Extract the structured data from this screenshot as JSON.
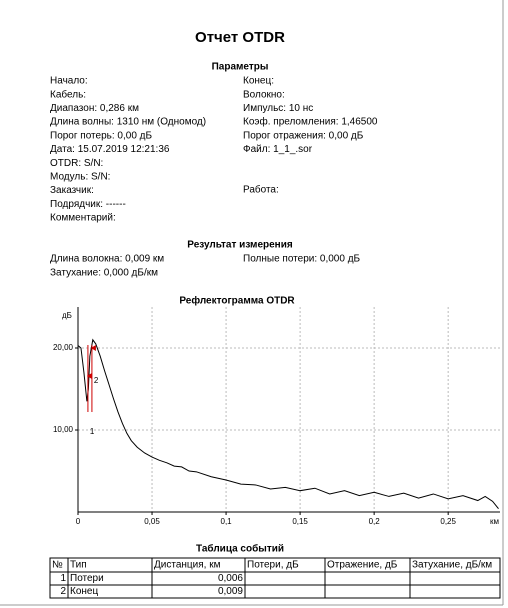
{
  "header": {
    "title": "Отчет OTDR"
  },
  "parameters": {
    "heading": "Параметры",
    "left": [
      "Начало:",
      "Кабель:",
      "Диапазон: 0,286 км",
      "Длина волны: 1310 нм (Одномод)",
      "Порог потерь: 0,00 дБ",
      "Дата: 15.07.2019 12:21:36",
      "OTDR:  S/N:",
      "Модуль:  S/N:",
      "Заказчик:",
      "Подрядчик: ------",
      "Комментарий:"
    ],
    "right": [
      "Конец:",
      "Волокно:",
      "Импульс: 10 нс",
      "Коэф. преломления: 1,46500",
      "Порог отражения: 0,00 дБ",
      "Файл: 1_1_.sor"
    ],
    "work": "Работа:"
  },
  "result": {
    "heading": "Результат измерения",
    "fiber_length": "Длина волокна: 0,009 км",
    "total_loss": "Полные потери: 0,000 дБ",
    "attenuation": "Затухание: 0,000 дБ/км"
  },
  "chart_data": {
    "type": "line",
    "title": "Рефлектограмма OTDR",
    "y_label": "дБ",
    "x_unit": "км",
    "color": "#000000",
    "x": [
      0,
      0.002,
      0.004,
      0.006,
      0.007,
      0.008,
      0.01,
      0.012,
      0.015,
      0.018,
      0.021,
      0.024,
      0.027,
      0.03,
      0.033,
      0.036,
      0.04,
      0.045,
      0.05,
      0.055,
      0.06,
      0.065,
      0.07,
      0.075,
      0.08,
      0.09,
      0.1,
      0.11,
      0.12,
      0.13,
      0.14,
      0.15,
      0.16,
      0.17,
      0.18,
      0.19,
      0.2,
      0.21,
      0.22,
      0.23,
      0.24,
      0.25,
      0.26,
      0.27,
      0.275,
      0.28,
      0.284
    ],
    "values": [
      20.3,
      20.0,
      17.0,
      13.5,
      15.0,
      19.0,
      21.0,
      20.5,
      19.0,
      17.2,
      15.5,
      13.8,
      12.2,
      10.8,
      9.6,
      8.7,
      7.9,
      7.2,
      6.7,
      6.3,
      6.0,
      5.6,
      5.5,
      5.0,
      4.9,
      4.3,
      3.9,
      3.4,
      3.3,
      2.8,
      3.0,
      2.6,
      2.9,
      2.2,
      2.6,
      2.0,
      2.4,
      1.9,
      2.3,
      1.7,
      2.2,
      1.6,
      2.0,
      1.4,
      1.9,
      1.3,
      0.4
    ],
    "xlim": [
      0,
      0.285
    ],
    "ylim": [
      0,
      25
    ],
    "xticks": [
      0,
      {
        "value": 0.05,
        "label": "0,05"
      },
      {
        "value": 0.1,
        "label": "0,1"
      },
      {
        "value": 0.15,
        "label": "0,15"
      },
      {
        "value": 0.2,
        "label": "0,2"
      },
      {
        "value": 0.25,
        "label": "0,25"
      }
    ],
    "yticks": [
      {
        "value": 10,
        "label": "10,00"
      },
      {
        "value": 20,
        "label": "20,00"
      }
    ],
    "grid": true,
    "markers": [
      {
        "label": "1",
        "x": 0.0067,
        "color": "#cc0000"
      },
      {
        "label": "2",
        "x": 0.0094,
        "color": "#cc0000"
      }
    ]
  },
  "events_table": {
    "title": "Таблица событий",
    "columns": [
      "№",
      "Тип",
      "Дистанция, км",
      "Потери, дБ",
      "Отражение, дБ",
      "Затухание, дБ/км"
    ],
    "rows": [
      [
        "1",
        "Потери",
        "0,006"
      ],
      [
        "2",
        "Конец",
        "0,009"
      ]
    ]
  }
}
